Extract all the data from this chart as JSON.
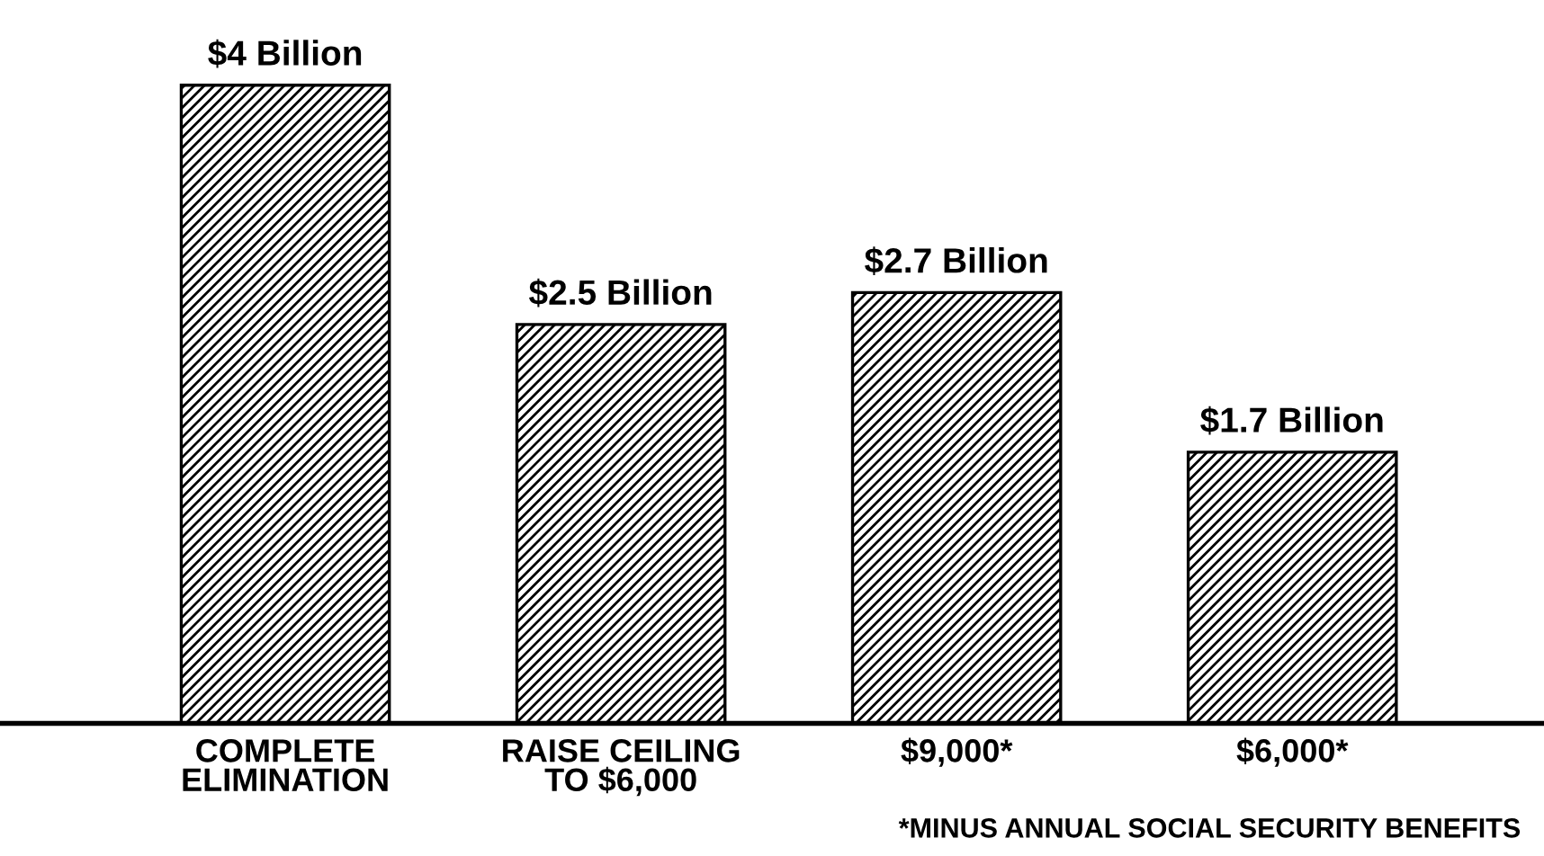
{
  "chart_data": {
    "type": "bar",
    "categories": [
      "COMPLETE\nELIMINATION",
      "RAISE CEILING\nTO $6,000",
      "$9,000*",
      "$6,000*"
    ],
    "values": [
      4,
      2.5,
      2.7,
      1.7
    ],
    "value_labels": [
      "$4 Billion",
      "$2.5 Billion",
      "$2.7 Billion",
      "$1.7 Billion"
    ],
    "color": "#000000",
    "annotations": [
      "*MINUS ANNUAL SOCIAL SECURITY BENEFITS"
    ]
  }
}
